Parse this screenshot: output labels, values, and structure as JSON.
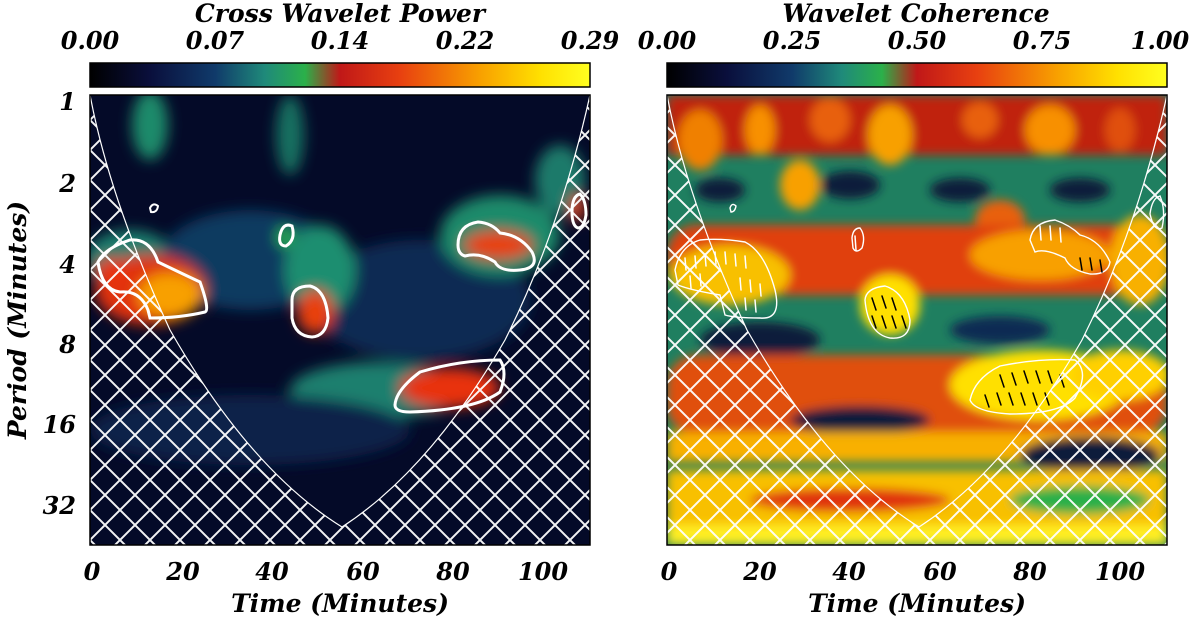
{
  "chart_data": [
    {
      "type": "heatmap",
      "title": "Cross Wavelet Power",
      "colorbar": {
        "ticks": [
          "0.00",
          "0.07",
          "0.14",
          "0.22",
          "0.29"
        ],
        "range": [
          0.0,
          0.29
        ]
      },
      "xlabel": "Time (Minutes)",
      "ylabel": "Period (Minutes)",
      "xlim": [
        0,
        110
      ],
      "ylim_period_log2": [
        1,
        45
      ],
      "x_ticks": [
        "0",
        "20",
        "40",
        "60",
        "80",
        "100"
      ],
      "y_ticks": [
        "1",
        "2",
        "4",
        "8",
        "16",
        "32"
      ],
      "significant_regions": [
        {
          "time_range": [
            2,
            25
          ],
          "period_range": [
            3.7,
            6.5
          ]
        },
        {
          "time_range": [
            41,
            46
          ],
          "period_range": [
            3.0,
            3.6
          ]
        },
        {
          "time_range": [
            44,
            53
          ],
          "period_range": [
            5.0,
            7.5
          ]
        },
        {
          "time_range": [
            69,
            92
          ],
          "period_range": [
            9.5,
            14.0
          ]
        },
        {
          "time_range": [
            81,
            99
          ],
          "period_range": [
            3.0,
            4.8
          ]
        },
        {
          "time_range": [
            105,
            109
          ],
          "period_range": [
            2.3,
            3.3
          ]
        },
        {
          "time_range": [
            13,
            15
          ],
          "period_range": [
            2.3,
            2.6
          ]
        }
      ],
      "cone_of_influence": true
    },
    {
      "type": "heatmap",
      "title": "Wavelet Coherence",
      "colorbar": {
        "ticks": [
          "0.00",
          "0.25",
          "0.50",
          "0.75",
          "1.00"
        ],
        "range": [
          0.0,
          1.0
        ]
      },
      "xlabel": "Time (Minutes)",
      "ylabel": "",
      "xlim": [
        0,
        110
      ],
      "ylim_period_log2": [
        1,
        45
      ],
      "x_ticks": [
        "0",
        "20",
        "40",
        "60",
        "80",
        "100"
      ],
      "significant_regions": [
        {
          "time_range": [
            2,
            25
          ],
          "period_range": [
            3.5,
            6.5
          ]
        },
        {
          "time_range": [
            44,
            54
          ],
          "period_range": [
            5.0,
            7.5
          ]
        },
        {
          "time_range": [
            68,
            94
          ],
          "period_range": [
            10.0,
            15.0
          ]
        },
        {
          "time_range": [
            81,
            99
          ],
          "period_range": [
            3.0,
            4.6
          ]
        },
        {
          "time_range": [
            40,
            44
          ],
          "period_range": [
            3.0,
            4.0
          ]
        }
      ],
      "cone_of_influence": true
    }
  ]
}
